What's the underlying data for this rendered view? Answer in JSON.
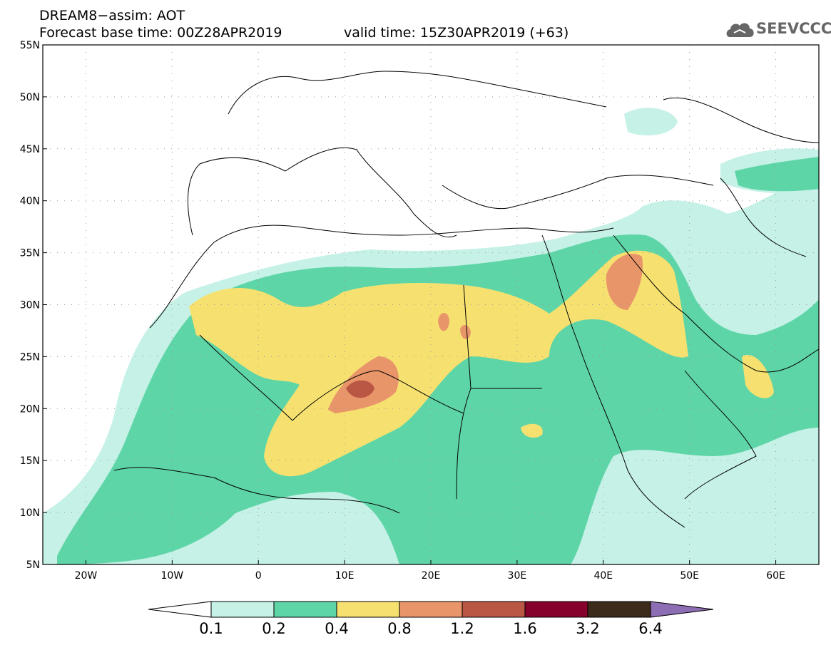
{
  "title": {
    "line1": "DREAM8−assim: AOT",
    "line2": "Forecast base time: 00Z28APR2019",
    "line2b": "valid time: 15Z30APR2019 (+63)"
  },
  "logo": {
    "text": "SEEVCCC",
    "icon": "cloud-icon"
  },
  "map": {
    "lon_range": [
      -25,
      65
    ],
    "lat_range": [
      5,
      55
    ],
    "lon_ticks": [
      {
        "lon": -20,
        "label": "20W"
      },
      {
        "lon": -10,
        "label": "10W"
      },
      {
        "lon": 0,
        "label": "0"
      },
      {
        "lon": 10,
        "label": "10E"
      },
      {
        "lon": 20,
        "label": "20E"
      },
      {
        "lon": 30,
        "label": "30E"
      },
      {
        "lon": 40,
        "label": "40E"
      },
      {
        "lon": 50,
        "label": "50E"
      },
      {
        "lon": 60,
        "label": "60E"
      }
    ],
    "lat_ticks": [
      {
        "lat": 55,
        "label": "55N"
      },
      {
        "lat": 50,
        "label": "50N"
      },
      {
        "lat": 45,
        "label": "45N"
      },
      {
        "lat": 40,
        "label": "40N"
      },
      {
        "lat": 35,
        "label": "35N"
      },
      {
        "lat": 30,
        "label": "30N"
      },
      {
        "lat": 25,
        "label": "25N"
      },
      {
        "lat": 20,
        "label": "20N"
      },
      {
        "lat": 15,
        "label": "15N"
      },
      {
        "lat": 10,
        "label": "10N"
      },
      {
        "lat": 5,
        "label": "5N"
      }
    ],
    "grid": "dotted"
  },
  "colorbar": {
    "levels": [
      "0.1",
      "0.2",
      "0.4",
      "0.8",
      "1.2",
      "1.6",
      "3.2",
      "6.4"
    ],
    "colors": [
      "#ffffff",
      "#c5f1e6",
      "#5ed5a7",
      "#f6e170",
      "#e9956a",
      "#b95644",
      "#86012b",
      "#3c2a1a",
      "#8d6db3"
    ]
  }
}
